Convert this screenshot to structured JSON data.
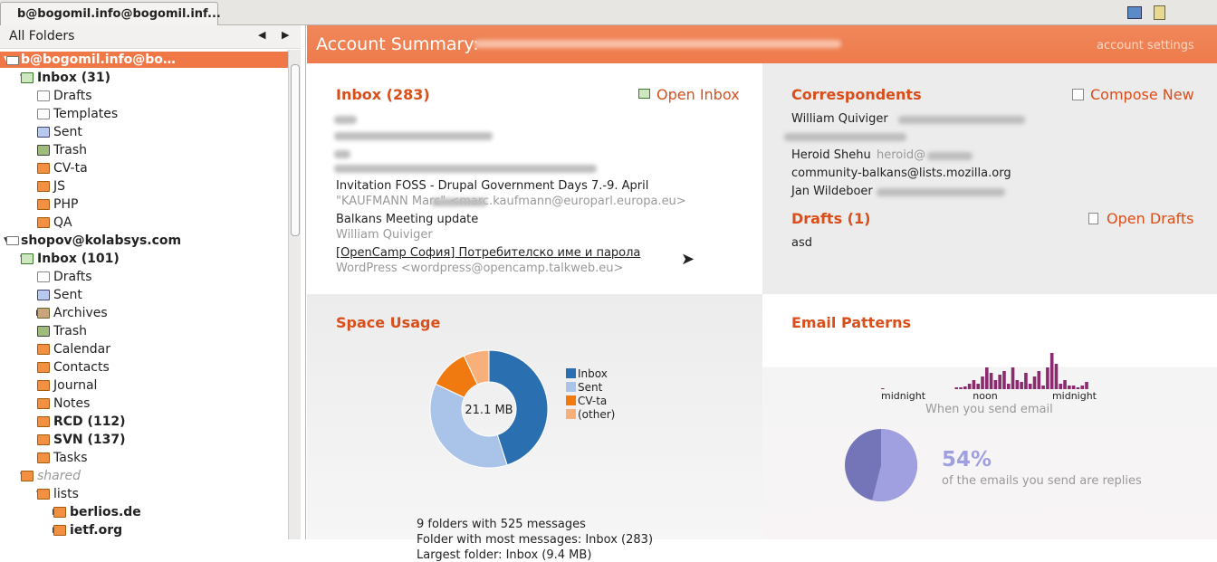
{
  "tab": {
    "title": "b@bogomil.info@bogomil.inf..."
  },
  "sidebar": {
    "header": "All Folders",
    "folders": [
      {
        "label": "b@bogomil.info@bo…fob@bogomil.info",
        "account": true,
        "selected": true,
        "expanded": true,
        "children": [
          {
            "label": "Inbox (31)",
            "bold": true,
            "expanded": true,
            "icon": "inbox",
            "children": [
              {
                "label": "Drafts",
                "icon": "doc"
              },
              {
                "label": "Templates",
                "icon": "doc"
              },
              {
                "label": "Sent",
                "icon": "sent"
              },
              {
                "label": "Trash",
                "icon": "trash"
              },
              {
                "label": "CV-ta",
                "icon": "folder"
              },
              {
                "label": "JS",
                "icon": "folder"
              },
              {
                "label": "PHP",
                "icon": "folder"
              },
              {
                "label": "QA",
                "icon": "folder"
              }
            ]
          }
        ]
      },
      {
        "label": "shopov@kolabsys.com",
        "account": true,
        "expanded": true,
        "children": [
          {
            "label": "Inbox (101)",
            "bold": true,
            "expanded": true,
            "icon": "inbox",
            "children": [
              {
                "label": "Drafts",
                "icon": "doc"
              },
              {
                "label": "Sent",
                "icon": "sent"
              },
              {
                "label": "Archives",
                "icon": "archive",
                "expanded": false
              },
              {
                "label": "Trash",
                "icon": "trash"
              },
              {
                "label": "Calendar",
                "icon": "folder"
              },
              {
                "label": "Contacts",
                "icon": "folder"
              },
              {
                "label": "Journal",
                "icon": "folder"
              },
              {
                "label": "Notes",
                "icon": "folder"
              },
              {
                "label": "RCD (112)",
                "bold": true,
                "icon": "folder"
              },
              {
                "label": "SVN (137)",
                "bold": true,
                "icon": "folder"
              },
              {
                "label": "Tasks",
                "icon": "folder"
              }
            ]
          },
          {
            "label": "shared",
            "italic": true,
            "expanded": true,
            "icon": "folder",
            "children": [
              {
                "label": "lists",
                "expanded": true,
                "icon": "folder",
                "children": [
                  {
                    "label": "berlios.de",
                    "bold": true,
                    "expanded": false,
                    "icon": "folder"
                  },
                  {
                    "label": "ietf.org",
                    "bold": true,
                    "expanded": false,
                    "icon": "folder"
                  }
                ]
              }
            ]
          }
        ]
      }
    ]
  },
  "summary": {
    "title": "Account Summary:",
    "settings": "account settings",
    "inbox": {
      "title": "Inbox (283)",
      "action": "Open Inbox",
      "messages": [
        {
          "subject": "Invitation FOSS - Drupal Government Days 7.-9. April",
          "from": "\"KAUFMANN Marc\" <marc.kaufmann@europarl.europa.eu>"
        },
        {
          "subject": "Balkans Meeting update",
          "from": "William Quiviger"
        },
        {
          "subject": "[OpenCamp София] Потребителско име и парола",
          "from": "WordPress <wordpress@opencamp.talkweb.eu>"
        }
      ]
    },
    "correspondents": {
      "title": "Correspondents",
      "action": "Compose New",
      "people": [
        {
          "name": "William Quiviger"
        },
        {
          "name": "Heroid Shehu",
          "email": "heroid@"
        },
        {
          "name": "community-balkans@lists.mozilla.org"
        },
        {
          "name": "Jan Wildeboer"
        }
      ]
    },
    "drafts": {
      "title": "Drafts (1)",
      "action": "Open Drafts",
      "items": [
        "asd"
      ]
    },
    "space_usage": {
      "title": "Space Usage",
      "chart": {
        "type": "donut",
        "center_label": "21.1 MB",
        "categories": [
          "Inbox",
          "Sent",
          "CV-ta",
          "(other)"
        ],
        "values": [
          45,
          37,
          11,
          7
        ],
        "colors": [
          "#2a6fb0",
          "#a9c4e8",
          "#f07a10",
          "#f8b07a"
        ]
      },
      "stats": [
        "9 folders with 525 messages",
        "Folder with most messages: Inbox (283)",
        "Largest folder: Inbox (9.4 MB)"
      ]
    },
    "email_patterns": {
      "title": "Email Patterns",
      "histogram": {
        "type": "bar",
        "x_labels": [
          "midnight",
          "noon",
          "midnight"
        ],
        "ylim": [
          0,
          40
        ],
        "color": "#8b2a6e",
        "values": [
          1,
          0,
          0,
          0,
          0,
          0,
          0,
          0,
          0,
          0,
          0,
          0,
          0,
          0,
          0,
          0,
          0,
          2,
          2,
          3,
          6,
          10,
          6,
          14,
          24,
          18,
          10,
          16,
          20,
          6,
          24,
          10,
          8,
          18,
          6,
          14,
          20,
          4,
          24,
          40,
          28,
          6,
          10,
          4,
          4,
          2,
          4,
          8
        ],
        "caption": "When you send email"
      },
      "replies": {
        "type": "pie",
        "value": 54,
        "value_label": "54%",
        "caption": "of the emails you send are replies",
        "colors": [
          "#a0a0e0",
          "#7474b8"
        ]
      }
    }
  }
}
